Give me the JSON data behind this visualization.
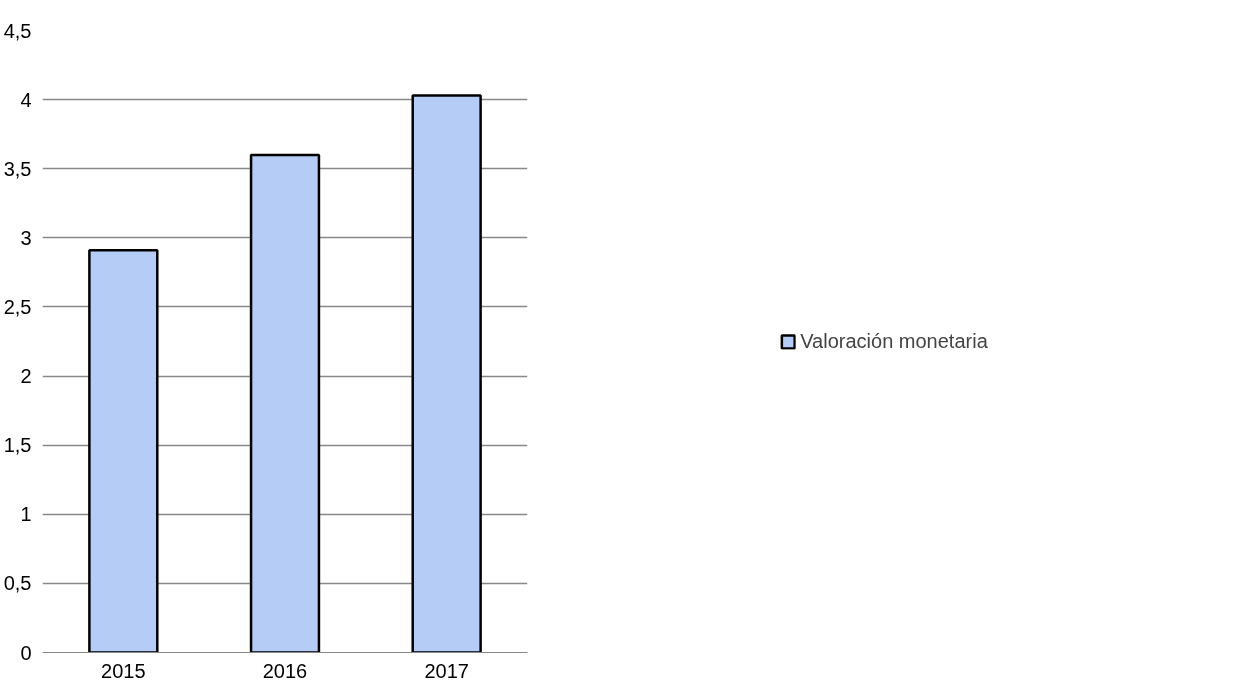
{
  "chart_data": {
    "type": "bar",
    "categories": [
      "2015",
      "2016",
      "2017"
    ],
    "series": [
      {
        "name": "Valoración monetaria",
        "color": "#b4ccf6",
        "values": [
          2.91,
          3.6,
          4.03
        ]
      }
    ],
    "ylim": [
      0,
      4.5
    ],
    "yticks": [
      0,
      {
        "value": 0.5,
        "label": "0,5"
      },
      1,
      {
        "value": 1.5,
        "label": "1,5"
      },
      2,
      {
        "value": 2.5,
        "label": "2,5"
      },
      3,
      {
        "value": 3.5,
        "label": "3,5"
      },
      4,
      {
        "value": 4.5,
        "label": "4,5"
      }
    ],
    "grid": "y",
    "legend": "right"
  }
}
